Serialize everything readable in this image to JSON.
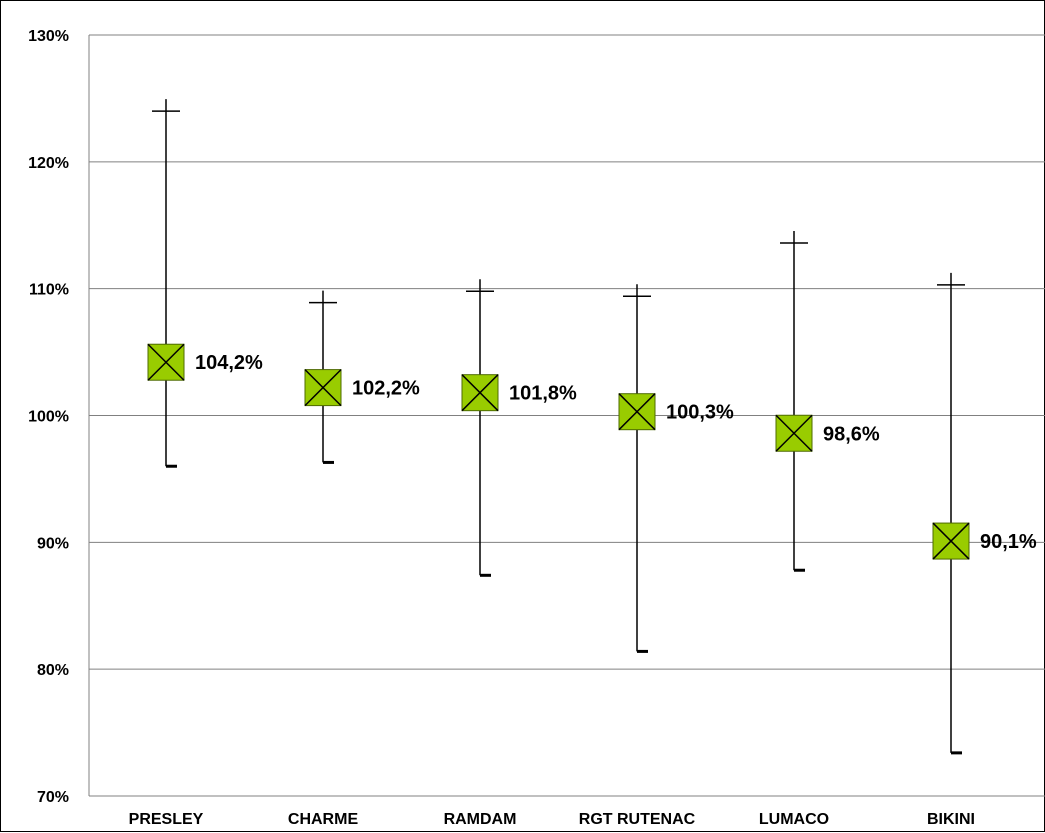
{
  "chart_data": {
    "type": "scatter",
    "title": "",
    "xlabel": "",
    "ylabel": "",
    "y_unit": "%",
    "ylim": [
      70,
      130
    ],
    "y_ticks": [
      "70%",
      "80%",
      "90%",
      "100%",
      "110%",
      "120%",
      "130%"
    ],
    "grid": true,
    "categories": [
      "PRESLEY",
      "CHARME",
      "RAMDAM",
      "RGT RUTENAC",
      "LUMACO",
      "BIKINI"
    ],
    "values": [
      104.2,
      102.2,
      101.8,
      100.3,
      98.6,
      90.1
    ],
    "data_labels": [
      "104,2%",
      "102,2%",
      "101,8%",
      "100,3%",
      "98,6%",
      "90,1%"
    ],
    "error_high": [
      124.0,
      108.9,
      109.8,
      109.4,
      113.6,
      110.3
    ],
    "error_low": [
      96.0,
      96.3,
      87.4,
      81.4,
      87.8,
      73.4
    ],
    "marker_color": "#99CC00",
    "marker_border": "#4E6B00",
    "grid_color": "#808080"
  }
}
